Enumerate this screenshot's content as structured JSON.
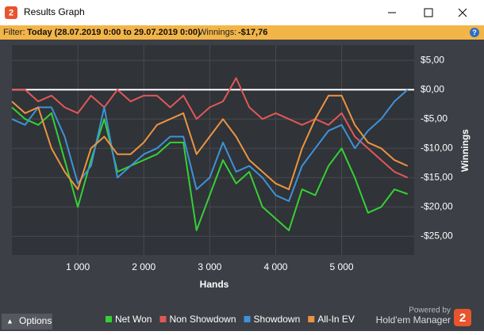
{
  "window": {
    "title": "Results Graph",
    "logo": "2",
    "filter_label": "Filter:",
    "filter_value": "Today (28.07.2019 0:00 to 29.07.2019 0:00)",
    "winnings_label": "Winnings:",
    "winnings_value": "-$17,76",
    "options": "Options",
    "powered_by": "Powered by",
    "brand": "Hold'em Manager"
  },
  "chart_data": {
    "type": "line",
    "x_label": "Hands",
    "y_label": "Winnings",
    "x": [
      0,
      200,
      400,
      600,
      800,
      1000,
      1200,
      1400,
      1600,
      1800,
      2000,
      2200,
      2400,
      2600,
      2800,
      3000,
      3200,
      3400,
      3600,
      3800,
      4000,
      4200,
      4400,
      4600,
      4800,
      5000,
      5200,
      5400,
      5600,
      5800,
      6000
    ],
    "series": [
      {
        "name": "Net Won",
        "color": "#35d035",
        "values": [
          -3,
          -5,
          -6,
          -4,
          -12,
          -20,
          -12,
          -5,
          -14,
          -13,
          -12,
          -11,
          -9,
          -9,
          -24,
          -18,
          -12,
          -16,
          -14,
          -20,
          -22,
          -24,
          -17,
          -18,
          -13,
          -10,
          -15,
          -21,
          -20,
          -17,
          -17.8
        ]
      },
      {
        "name": "Non Showdown",
        "color": "#e05858",
        "values": [
          0,
          0,
          -2,
          -1,
          -3,
          -4,
          -1,
          -3,
          0,
          -2,
          -1,
          -1,
          -3,
          -1,
          -5,
          -3,
          -2,
          2,
          -3,
          -5,
          -4,
          -5,
          -6,
          -5,
          -6,
          -4,
          -8,
          -10,
          -12,
          -14,
          -15
        ]
      },
      {
        "name": "Showdown",
        "color": "#3e92d8",
        "values": [
          -5,
          -6,
          -3,
          -3,
          -8,
          -16,
          -13,
          -3,
          -15,
          -13,
          -11,
          -10,
          -8,
          -8,
          -17,
          -15,
          -9,
          -14,
          -13,
          -15,
          -18,
          -19,
          -13,
          -10,
          -7,
          -6,
          -10,
          -7,
          -5,
          -2,
          0
        ]
      },
      {
        "name": "All-In EV",
        "color": "#ec9440",
        "values": [
          -2,
          -4,
          -3,
          -10,
          -14,
          -17,
          -10,
          -8,
          -11,
          -11,
          -9,
          -6,
          -5,
          -4,
          -11,
          -8,
          -5,
          -8,
          -12,
          -14,
          -16,
          -17,
          -10,
          -5,
          -1,
          -1,
          -6,
          -9,
          -10,
          -12,
          -13
        ]
      }
    ],
    "xlim": [
      0,
      6100
    ],
    "ylim": [
      -28.2,
      7.6
    ],
    "xticks": [
      {
        "value": 1000,
        "label": "1 000"
      },
      {
        "value": 2000,
        "label": "2 000"
      },
      {
        "value": 3000,
        "label": "3 000"
      },
      {
        "value": 4000,
        "label": "4 000"
      },
      {
        "value": 5000,
        "label": "5 000"
      }
    ],
    "yticks": [
      {
        "value": 5,
        "label": "$5,00"
      },
      {
        "value": 0,
        "label": "$0,00"
      },
      {
        "value": -5,
        "label": "-$5,00"
      },
      {
        "value": -10,
        "label": "-$10,00"
      },
      {
        "value": -15,
        "label": "-$15,00"
      },
      {
        "value": -20,
        "label": "-$20,00"
      },
      {
        "value": -25,
        "label": "-$25,00"
      }
    ],
    "grid": true,
    "legend": "bottom"
  }
}
